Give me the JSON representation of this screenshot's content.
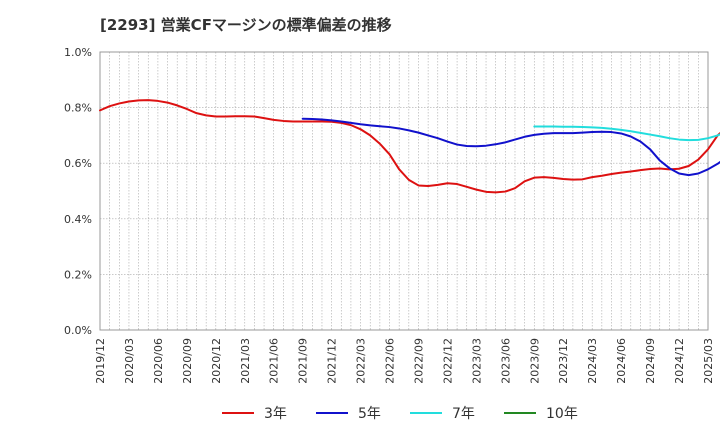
{
  "chart_data": {
    "type": "line",
    "title": "[2293]  営業CFマージンの標準偏差の推移",
    "xlabel": "",
    "ylabel": "",
    "ylim": [
      0,
      1.0
    ],
    "yticks": [
      "0.0%",
      "0.2%",
      "0.4%",
      "0.6%",
      "0.8%",
      "1.0%"
    ],
    "xticks": [
      "2019/12",
      "2020/03",
      "2020/06",
      "2020/09",
      "2020/12",
      "2021/03",
      "2021/06",
      "2021/09",
      "2021/12",
      "2022/03",
      "2022/06",
      "2022/09",
      "2022/12",
      "2023/03",
      "2023/06",
      "2023/09",
      "2023/12",
      "2024/03",
      "2024/06",
      "2024/09",
      "2024/12",
      "2025/03"
    ],
    "grid": true,
    "legend_position": "bottom",
    "series": [
      {
        "name": "3年",
        "color": "#dd1111",
        "points": [
          [
            "2019/12",
            0.79
          ],
          [
            "2020/01",
            0.805
          ],
          [
            "2020/02",
            0.815
          ],
          [
            "2020/03",
            0.822
          ],
          [
            "2020/04",
            0.826
          ],
          [
            "2020/05",
            0.827
          ],
          [
            "2020/06",
            0.824
          ],
          [
            "2020/07",
            0.818
          ],
          [
            "2020/08",
            0.808
          ],
          [
            "2020/09",
            0.795
          ],
          [
            "2020/10",
            0.78
          ],
          [
            "2020/11",
            0.772
          ],
          [
            "2020/12",
            0.768
          ],
          [
            "2021/01",
            0.768
          ],
          [
            "2021/02",
            0.769
          ],
          [
            "2021/03",
            0.769
          ],
          [
            "2021/04",
            0.768
          ],
          [
            "2021/05",
            0.762
          ],
          [
            "2021/06",
            0.756
          ],
          [
            "2021/07",
            0.752
          ],
          [
            "2021/08",
            0.75
          ],
          [
            "2021/09",
            0.75
          ],
          [
            "2021/10",
            0.75
          ],
          [
            "2021/11",
            0.75
          ],
          [
            "2021/12",
            0.749
          ],
          [
            "2022/01",
            0.745
          ],
          [
            "2022/02",
            0.737
          ],
          [
            "2022/03",
            0.722
          ],
          [
            "2022/04",
            0.7
          ],
          [
            "2022/05",
            0.67
          ],
          [
            "2022/06",
            0.632
          ],
          [
            "2022/07",
            0.578
          ],
          [
            "2022/08",
            0.54
          ],
          [
            "2022/09",
            0.52
          ],
          [
            "2022/10",
            0.518
          ],
          [
            "2022/11",
            0.522
          ],
          [
            "2022/12",
            0.528
          ],
          [
            "2023/01",
            0.525
          ],
          [
            "2023/02",
            0.515
          ],
          [
            "2023/03",
            0.505
          ],
          [
            "2023/04",
            0.497
          ],
          [
            "2023/05",
            0.495
          ],
          [
            "2023/06",
            0.498
          ],
          [
            "2023/07",
            0.51
          ],
          [
            "2023/08",
            0.535
          ],
          [
            "2023/09",
            0.548
          ],
          [
            "2023/10",
            0.55
          ],
          [
            "2023/11",
            0.547
          ],
          [
            "2023/12",
            0.543
          ],
          [
            "2024/01",
            0.541
          ],
          [
            "2024/02",
            0.542
          ],
          [
            "2024/03",
            0.55
          ],
          [
            "2024/04",
            0.555
          ],
          [
            "2024/05",
            0.561
          ],
          [
            "2024/06",
            0.566
          ],
          [
            "2024/07",
            0.57
          ],
          [
            "2024/08",
            0.575
          ],
          [
            "2024/09",
            0.579
          ],
          [
            "2024/10",
            0.581
          ],
          [
            "2024/11",
            0.578
          ],
          [
            "2024/12",
            0.58
          ],
          [
            "2025/01",
            0.59
          ],
          [
            "2025/02",
            0.613
          ],
          [
            "2025/03",
            0.65
          ],
          [
            "2025/04",
            0.7
          ],
          [
            "2025/05",
            0.73
          ]
        ]
      },
      {
        "name": "5年",
        "color": "#1111cc",
        "points": [
          [
            "2021/09",
            0.76
          ],
          [
            "2021/10",
            0.759
          ],
          [
            "2021/11",
            0.757
          ],
          [
            "2021/12",
            0.754
          ],
          [
            "2022/01",
            0.75
          ],
          [
            "2022/02",
            0.745
          ],
          [
            "2022/03",
            0.74
          ],
          [
            "2022/04",
            0.736
          ],
          [
            "2022/05",
            0.733
          ],
          [
            "2022/06",
            0.73
          ],
          [
            "2022/07",
            0.725
          ],
          [
            "2022/08",
            0.718
          ],
          [
            "2022/09",
            0.71
          ],
          [
            "2022/10",
            0.7
          ],
          [
            "2022/11",
            0.69
          ],
          [
            "2022/12",
            0.678
          ],
          [
            "2023/01",
            0.667
          ],
          [
            "2023/02",
            0.662
          ],
          [
            "2023/03",
            0.661
          ],
          [
            "2023/04",
            0.663
          ],
          [
            "2023/05",
            0.668
          ],
          [
            "2023/06",
            0.675
          ],
          [
            "2023/07",
            0.685
          ],
          [
            "2023/08",
            0.695
          ],
          [
            "2023/09",
            0.702
          ],
          [
            "2023/10",
            0.706
          ],
          [
            "2023/11",
            0.708
          ],
          [
            "2023/12",
            0.708
          ],
          [
            "2024/01",
            0.708
          ],
          [
            "2024/02",
            0.71
          ],
          [
            "2024/03",
            0.712
          ],
          [
            "2024/04",
            0.713
          ],
          [
            "2024/05",
            0.712
          ],
          [
            "2024/06",
            0.707
          ],
          [
            "2024/07",
            0.696
          ],
          [
            "2024/08",
            0.678
          ],
          [
            "2024/09",
            0.65
          ],
          [
            "2024/10",
            0.61
          ],
          [
            "2024/11",
            0.582
          ],
          [
            "2024/12",
            0.563
          ],
          [
            "2025/01",
            0.557
          ],
          [
            "2025/02",
            0.563
          ],
          [
            "2025/03",
            0.578
          ],
          [
            "2025/04",
            0.598
          ],
          [
            "2025/05",
            0.622
          ]
        ]
      },
      {
        "name": "7年",
        "color": "#22dddd",
        "points": [
          [
            "2023/09",
            0.732
          ],
          [
            "2023/10",
            0.732
          ],
          [
            "2023/11",
            0.732
          ],
          [
            "2023/12",
            0.731
          ],
          [
            "2024/01",
            0.731
          ],
          [
            "2024/02",
            0.73
          ],
          [
            "2024/03",
            0.729
          ],
          [
            "2024/04",
            0.727
          ],
          [
            "2024/05",
            0.724
          ],
          [
            "2024/06",
            0.72
          ],
          [
            "2024/07",
            0.715
          ],
          [
            "2024/08",
            0.709
          ],
          [
            "2024/09",
            0.703
          ],
          [
            "2024/10",
            0.697
          ],
          [
            "2024/11",
            0.69
          ],
          [
            "2024/12",
            0.685
          ],
          [
            "2025/01",
            0.683
          ],
          [
            "2025/02",
            0.684
          ],
          [
            "2025/03",
            0.69
          ],
          [
            "2025/04",
            0.7
          ],
          [
            "2025/05",
            0.715
          ]
        ]
      },
      {
        "name": "10年",
        "color": "#228822",
        "points": []
      }
    ]
  }
}
